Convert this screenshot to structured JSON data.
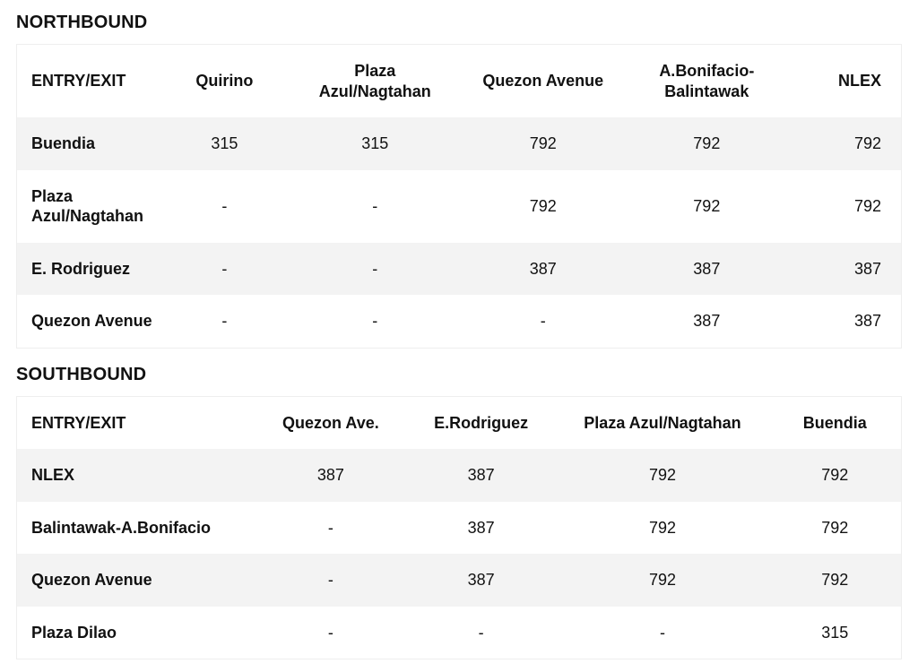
{
  "colors": {
    "background": "#ffffff",
    "text": "#111111",
    "row_stripe": "#f3f3f3",
    "border": "#eeeeee"
  },
  "typography": {
    "title_fontsize_pt": 15,
    "cell_fontsize_pt": 13.5,
    "header_weight": 700,
    "rowheader_weight": 700
  },
  "northbound": {
    "title": "NORTHBOUND",
    "columns": [
      "ENTRY/EXIT",
      "Quirino",
      "Plaza Azul/Nagtahan",
      "Quezon Avenue",
      "A.Bonifacio-Balintawak",
      "NLEX"
    ],
    "col_widths_pct": [
      17,
      13,
      21,
      17,
      20,
      12
    ],
    "rows": [
      [
        "Buendia",
        "315",
        "315",
        "792",
        "792",
        "792"
      ],
      [
        "Plaza Azul/Nagtahan",
        "-",
        "-",
        "792",
        "792",
        "792"
      ],
      [
        "E. Rodriguez",
        "-",
        "-",
        "387",
        "387",
        "387"
      ],
      [
        "Quezon Avenue",
        "-",
        "-",
        "-",
        "387",
        "387"
      ]
    ]
  },
  "southbound": {
    "title": "SOUTHBOUND",
    "columns": [
      "ENTRY/EXIT",
      "Quezon Ave.",
      "E.Rodriguez",
      "Plaza Azul/Nagtahan",
      "Buendia"
    ],
    "col_widths_pct": [
      27,
      17,
      17,
      24,
      15
    ],
    "rows": [
      [
        "NLEX",
        "387",
        "387",
        "792",
        "792"
      ],
      [
        "Balintawak-A.Bonifacio",
        "-",
        "387",
        "792",
        "792"
      ],
      [
        "Quezon Avenue",
        "-",
        "387",
        "792",
        "792"
      ],
      [
        "Plaza Dilao",
        "-",
        "-",
        "-",
        "315"
      ]
    ]
  }
}
